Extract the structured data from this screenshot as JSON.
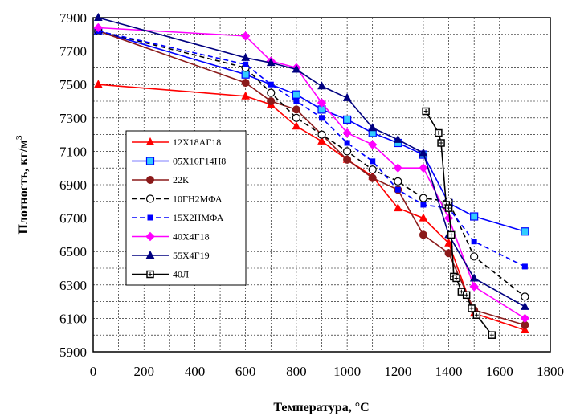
{
  "chart_data": {
    "type": "line",
    "xlabel": "Температура, °С",
    "ylabel": "Плотность, кг/м",
    "ylabel_superscript": "3",
    "xlim": [
      0,
      1800
    ],
    "ylim": [
      5900,
      7900
    ],
    "xticks": [
      "0",
      "200",
      "400",
      "600",
      "800",
      "1000",
      "1200",
      "1400",
      "1600",
      "1800"
    ],
    "yticks": [
      "5900",
      "6100",
      "6300",
      "6500",
      "6700",
      "6900",
      "7100",
      "7300",
      "7500",
      "7700",
      "7900"
    ],
    "grid": true,
    "legend_position": "left",
    "series": [
      {
        "name": "12Х18АГ18",
        "color": "#ff0000",
        "marker": "triangle",
        "dash": "none",
        "points": [
          [
            20,
            7500
          ],
          [
            600,
            7430
          ],
          [
            700,
            7380
          ],
          [
            800,
            7250
          ],
          [
            900,
            7160
          ],
          [
            1000,
            7050
          ],
          [
            1100,
            6950
          ],
          [
            1200,
            6760
          ],
          [
            1300,
            6700
          ],
          [
            1400,
            6550
          ],
          [
            1500,
            6130
          ],
          [
            1700,
            6030
          ]
        ]
      },
      {
        "name": "05Х16Г14Н8",
        "color": "#0000ff",
        "marker": "square-open",
        "marker_fill": "#33ccff",
        "dash": "none",
        "points": [
          [
            20,
            7820
          ],
          [
            600,
            7560
          ],
          [
            800,
            7440
          ],
          [
            900,
            7350
          ],
          [
            1000,
            7290
          ],
          [
            1100,
            7210
          ],
          [
            1200,
            7150
          ],
          [
            1300,
            7080
          ],
          [
            1400,
            6790
          ],
          [
            1500,
            6710
          ],
          [
            1700,
            6620
          ]
        ]
      },
      {
        "name": "22К",
        "color": "#8b1a1a",
        "marker": "circle",
        "dash": "none",
        "points": [
          [
            20,
            7820
          ],
          [
            600,
            7510
          ],
          [
            700,
            7400
          ],
          [
            800,
            7350
          ],
          [
            1000,
            7050
          ],
          [
            1100,
            6940
          ],
          [
            1200,
            6870
          ],
          [
            1300,
            6600
          ],
          [
            1400,
            6490
          ],
          [
            1500,
            6150
          ],
          [
            1700,
            6060
          ]
        ]
      },
      {
        "name": "10ГН2МФА",
        "color": "#000000",
        "marker": "circle-open",
        "dash": "dashed",
        "points": [
          [
            20,
            7820
          ],
          [
            600,
            7600
          ],
          [
            700,
            7450
          ],
          [
            800,
            7300
          ],
          [
            900,
            7200
          ],
          [
            1000,
            7100
          ],
          [
            1100,
            6990
          ],
          [
            1200,
            6920
          ],
          [
            1300,
            6820
          ],
          [
            1400,
            6800
          ],
          [
            1500,
            6470
          ],
          [
            1700,
            6230
          ]
        ]
      },
      {
        "name": "15Х2НМФА",
        "color": "#0000ff",
        "marker": "square",
        "dash": "dashed",
        "points": [
          [
            20,
            7820
          ],
          [
            600,
            7620
          ],
          [
            700,
            7500
          ],
          [
            800,
            7400
          ],
          [
            900,
            7300
          ],
          [
            1000,
            7150
          ],
          [
            1100,
            7040
          ],
          [
            1200,
            6870
          ],
          [
            1300,
            6780
          ],
          [
            1400,
            6760
          ],
          [
            1500,
            6560
          ],
          [
            1700,
            6410
          ]
        ]
      },
      {
        "name": "40Х4Г18",
        "color": "#ff00ff",
        "marker": "diamond",
        "dash": "none",
        "points": [
          [
            20,
            7840
          ],
          [
            600,
            7790
          ],
          [
            700,
            7640
          ],
          [
            800,
            7600
          ],
          [
            900,
            7390
          ],
          [
            1000,
            7210
          ],
          [
            1100,
            7140
          ],
          [
            1200,
            7000
          ],
          [
            1300,
            7000
          ],
          [
            1400,
            6700
          ],
          [
            1500,
            6290
          ],
          [
            1700,
            6100
          ]
        ]
      },
      {
        "name": "55Х4Г19",
        "color": "#000080",
        "marker": "triangle",
        "dash": "none",
        "points": [
          [
            20,
            7900
          ],
          [
            600,
            7660
          ],
          [
            700,
            7630
          ],
          [
            800,
            7590
          ],
          [
            900,
            7490
          ],
          [
            1000,
            7420
          ],
          [
            1100,
            7240
          ],
          [
            1200,
            7170
          ],
          [
            1300,
            7090
          ],
          [
            1400,
            6600
          ],
          [
            1500,
            6340
          ],
          [
            1700,
            6170
          ]
        ]
      },
      {
        "name": "40Л",
        "color": "#000000",
        "marker": "square-cross",
        "dash": "none",
        "points": [
          [
            1310,
            7340
          ],
          [
            1360,
            7210
          ],
          [
            1370,
            7150
          ],
          [
            1390,
            6780
          ],
          [
            1400,
            6760
          ],
          [
            1410,
            6600
          ],
          [
            1420,
            6350
          ],
          [
            1430,
            6340
          ],
          [
            1450,
            6260
          ],
          [
            1470,
            6240
          ],
          [
            1490,
            6160
          ],
          [
            1510,
            6120
          ],
          [
            1570,
            6000
          ]
        ]
      }
    ]
  }
}
